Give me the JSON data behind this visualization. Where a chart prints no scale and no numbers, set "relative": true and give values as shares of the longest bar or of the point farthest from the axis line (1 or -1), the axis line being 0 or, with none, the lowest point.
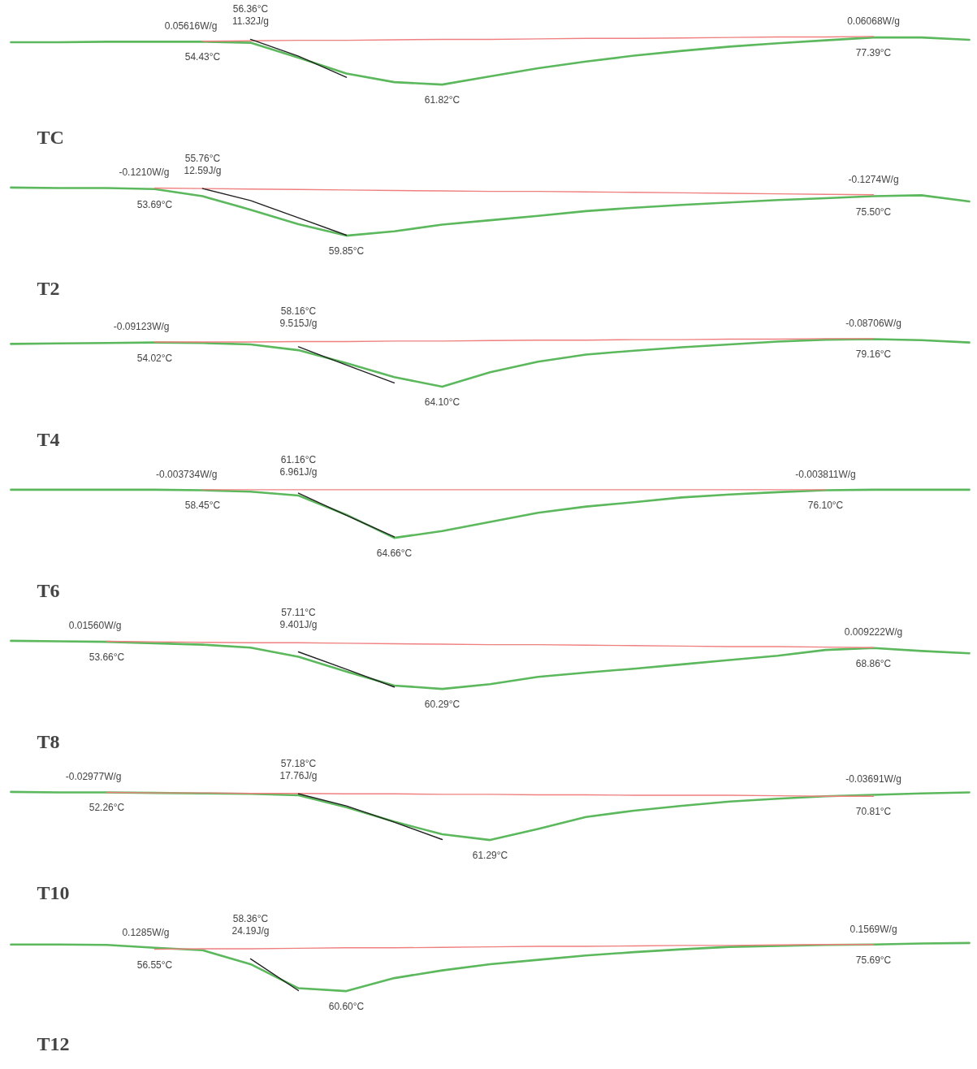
{
  "chart_data": [
    {
      "type": "line",
      "title": "TC",
      "relative": true,
      "categories": [
        null,
        null,
        null,
        null,
        null,
        null,
        null,
        null,
        null,
        null,
        null,
        null,
        null,
        null,
        null,
        null,
        null,
        null,
        null,
        null,
        null
      ],
      "series": [
        {
          "color": "#5cb85c",
          "values": [
            0.88,
            0.88,
            0.89,
            0.89,
            0.89,
            0.87,
            0.56,
            0.23,
            0.05,
            0,
            0.17,
            0.34,
            0.48,
            0.6,
            0.7,
            0.79,
            0.86,
            0.92,
            0.98,
            0.98,
            0.93
          ]
        },
        {
          "color": "#f08080",
          "values": [
            null,
            null,
            null,
            null,
            0.9,
            0.91,
            0.92,
            0.92,
            0.93,
            0.94,
            0.94,
            0.95,
            0.96,
            0.96,
            0.97,
            0.98,
            0.99,
            0.99,
            1.0,
            null,
            null
          ]
        },
        {
          "color": "#222222",
          "values": [
            null,
            null,
            null,
            null,
            null,
            0.94,
            0.59,
            0.15,
            null,
            null,
            null,
            null,
            null,
            null,
            null,
            null,
            null,
            null,
            null,
            null,
            null
          ]
        }
      ],
      "annotations": [
        "0.05616W/g",
        "54.43°C",
        "56.36°C",
        "11.32J/g",
        "61.82°C",
        "0.06068W/g",
        "77.39°C"
      ]
    },
    {
      "type": "line",
      "title": "T2",
      "relative": true,
      "categories": [
        null,
        null,
        null,
        null,
        null,
        null,
        null,
        null,
        null,
        null,
        null,
        null,
        null,
        null,
        null,
        null,
        null,
        null,
        null,
        null,
        null
      ],
      "series": [
        {
          "color": "#5cb85c",
          "values": [
            1.0,
            0.99,
            0.99,
            0.97,
            0.82,
            0.54,
            0.24,
            0,
            0.09,
            0.23,
            0.32,
            0.41,
            0.51,
            0.58,
            0.64,
            0.69,
            0.74,
            0.78,
            0.82,
            0.84,
            0.71
          ]
        },
        {
          "color": "#f08080",
          "values": [
            null,
            null,
            null,
            0.99,
            0.98,
            0.97,
            0.96,
            0.95,
            0.94,
            0.93,
            0.92,
            0.92,
            0.91,
            0.9,
            0.89,
            0.88,
            0.87,
            0.86,
            0.85,
            null,
            null
          ]
        },
        {
          "color": "#222222",
          "values": [
            null,
            null,
            null,
            null,
            0.98,
            0.73,
            0.37,
            0.01,
            null,
            null,
            null,
            null,
            null,
            null,
            null,
            null,
            null,
            null,
            null,
            null,
            null
          ]
        }
      ],
      "annotations": [
        "-0.1210W/g",
        "53.69°C",
        "55.76°C",
        "12.59J/g",
        "59.85°C",
        "-0.1274W/g",
        "75.50°C"
      ]
    },
    {
      "type": "line",
      "title": "T4",
      "relative": true,
      "categories": [
        null,
        null,
        null,
        null,
        null,
        null,
        null,
        null,
        null,
        null,
        null,
        null,
        null,
        null,
        null,
        null,
        null,
        null,
        null,
        null,
        null
      ],
      "series": [
        {
          "color": "#5cb85c",
          "values": [
            0.89,
            0.9,
            0.91,
            0.92,
            0.91,
            0.88,
            0.76,
            0.49,
            0.2,
            0,
            0.3,
            0.52,
            0.67,
            0.75,
            0.82,
            0.88,
            0.94,
            0.98,
            0.99,
            0.97,
            0.92
          ]
        },
        {
          "color": "#f08080",
          "values": [
            null,
            null,
            null,
            0.93,
            0.93,
            0.93,
            0.94,
            0.94,
            0.95,
            0.95,
            0.96,
            0.97,
            0.97,
            0.98,
            0.98,
            0.99,
            0.99,
            1.0,
            1.0,
            null,
            null
          ]
        },
        {
          "color": "#222222",
          "values": [
            null,
            null,
            null,
            null,
            null,
            null,
            0.83,
            0.45,
            0.08,
            null,
            null,
            null,
            null,
            null,
            null,
            null,
            null,
            null,
            null,
            null,
            null
          ]
        }
      ],
      "annotations": [
        "-0.09123W/g",
        "54.02°C",
        "58.16°C",
        "9.515J/g",
        "64.10°C",
        "-0.08706W/g",
        "79.16°C"
      ]
    },
    {
      "type": "line",
      "title": "T6",
      "relative": true,
      "categories": [
        null,
        null,
        null,
        null,
        null,
        null,
        null,
        null,
        null,
        null,
        null,
        null,
        null,
        null,
        null,
        null,
        null,
        null,
        null,
        null,
        null
      ],
      "series": [
        {
          "color": "#5cb85c",
          "values": [
            1,
            1,
            1,
            1,
            0.99,
            0.96,
            0.88,
            0.48,
            0,
            0.14,
            0.33,
            0.52,
            0.65,
            0.74,
            0.84,
            0.9,
            0.95,
            0.99,
            1,
            1,
            1
          ]
        },
        {
          "color": "#f08080",
          "values": [
            null,
            null,
            null,
            null,
            1,
            1,
            1,
            1,
            1,
            1,
            1,
            1,
            1,
            1,
            1,
            1,
            1,
            1,
            null,
            null,
            null
          ]
        },
        {
          "color": "#222222",
          "values": [
            null,
            null,
            null,
            null,
            null,
            null,
            0.93,
            0.47,
            0.02,
            null,
            null,
            null,
            null,
            null,
            null,
            null,
            null,
            null,
            null,
            null,
            null
          ]
        }
      ],
      "annotations": [
        "-0.003734W/g",
        "58.45°C",
        "61.16°C",
        "6.961J/g",
        "64.66°C",
        "-0.003811W/g",
        "76.10°C"
      ]
    },
    {
      "type": "line",
      "title": "T8",
      "relative": true,
      "categories": [
        null,
        null,
        null,
        null,
        null,
        null,
        null,
        null,
        null,
        null,
        null,
        null,
        null,
        null,
        null,
        null,
        null,
        null,
        null,
        null,
        null
      ],
      "series": [
        {
          "color": "#5cb85c",
          "values": [
            1.0,
            0.99,
            0.98,
            0.95,
            0.92,
            0.86,
            0.67,
            0.36,
            0.07,
            0,
            0.1,
            0.25,
            0.34,
            0.42,
            0.51,
            0.6,
            0.69,
            0.81,
            0.85,
            0.79,
            0.74
          ]
        },
        {
          "color": "#f08080",
          "values": [
            null,
            null,
            0.99,
            0.98,
            0.97,
            0.96,
            0.96,
            0.95,
            0.94,
            0.93,
            0.92,
            0.92,
            0.91,
            0.9,
            0.89,
            0.88,
            0.88,
            0.87,
            0.86,
            null,
            null
          ]
        },
        {
          "color": "#222222",
          "values": [
            null,
            null,
            null,
            null,
            null,
            null,
            0.77,
            0.41,
            0.04,
            null,
            null,
            null,
            null,
            null,
            null,
            null,
            null,
            null,
            null,
            null,
            null
          ]
        }
      ],
      "annotations": [
        "0.01560W/g",
        "53.66°C",
        "57.11°C",
        "9.401J/g",
        "60.29°C",
        "0.009222W/g",
        "68.86°C"
      ]
    },
    {
      "type": "line",
      "title": "T10",
      "relative": true,
      "categories": [
        null,
        null,
        null,
        null,
        null,
        null,
        null,
        null,
        null,
        null,
        null,
        null,
        null,
        null,
        null,
        null,
        null,
        null,
        null,
        null,
        null
      ],
      "series": [
        {
          "color": "#5cb85c",
          "values": [
            1.0,
            0.99,
            0.99,
            0.98,
            0.97,
            0.96,
            0.93,
            0.68,
            0.38,
            0.12,
            0,
            0.23,
            0.48,
            0.61,
            0.71,
            0.8,
            0.86,
            0.91,
            0.94,
            0.97,
            0.99
          ]
        },
        {
          "color": "#f08080",
          "values": [
            null,
            null,
            0.99,
            0.98,
            0.98,
            0.97,
            0.97,
            0.96,
            0.96,
            0.95,
            0.95,
            0.94,
            0.94,
            0.93,
            0.93,
            0.93,
            0.92,
            0.91,
            0.91,
            null,
            null
          ]
        },
        {
          "color": "#222222",
          "values": [
            null,
            null,
            null,
            null,
            null,
            null,
            0.96,
            0.71,
            0.37,
            0.01,
            null,
            null,
            null,
            null,
            null,
            null,
            null,
            null,
            null,
            null,
            null
          ]
        }
      ],
      "annotations": [
        "-0.02977W/g",
        "52.26°C",
        "57.18°C",
        "17.76J/g",
        "61.29°C",
        "-0.03691W/g",
        "70.81°C"
      ]
    },
    {
      "type": "line",
      "title": "T12",
      "relative": true,
      "categories": [
        null,
        null,
        null,
        null,
        null,
        null,
        null,
        null,
        null,
        null,
        null,
        null,
        null,
        null,
        null,
        null,
        null,
        null,
        null,
        null,
        null
      ],
      "series": [
        {
          "color": "#5cb85c",
          "values": [
            0.97,
            0.97,
            0.96,
            0.9,
            0.85,
            0.56,
            0.06,
            0,
            0.27,
            0.43,
            0.56,
            0.65,
            0.74,
            0.81,
            0.87,
            0.92,
            0.94,
            0.96,
            0.97,
            0.99,
            1.0
          ]
        },
        {
          "color": "#f08080",
          "values": [
            null,
            null,
            null,
            0.87,
            0.88,
            0.88,
            0.89,
            0.9,
            0.9,
            0.91,
            0.92,
            0.93,
            0.93,
            0.94,
            0.95,
            0.95,
            0.96,
            0.97,
            0.97,
            null,
            null
          ]
        },
        {
          "color": "#222222",
          "values": [
            null,
            null,
            null,
            null,
            null,
            0.67,
            0.01,
            null,
            null,
            null,
            null,
            null,
            null,
            null,
            null,
            null,
            null,
            null,
            null,
            null,
            null
          ]
        }
      ],
      "annotations": [
        "0.1285W/g",
        "56.55°C",
        "58.36°C",
        "24.19J/g",
        "60.60°C",
        "0.1569W/g",
        "75.69°C"
      ]
    }
  ]
}
